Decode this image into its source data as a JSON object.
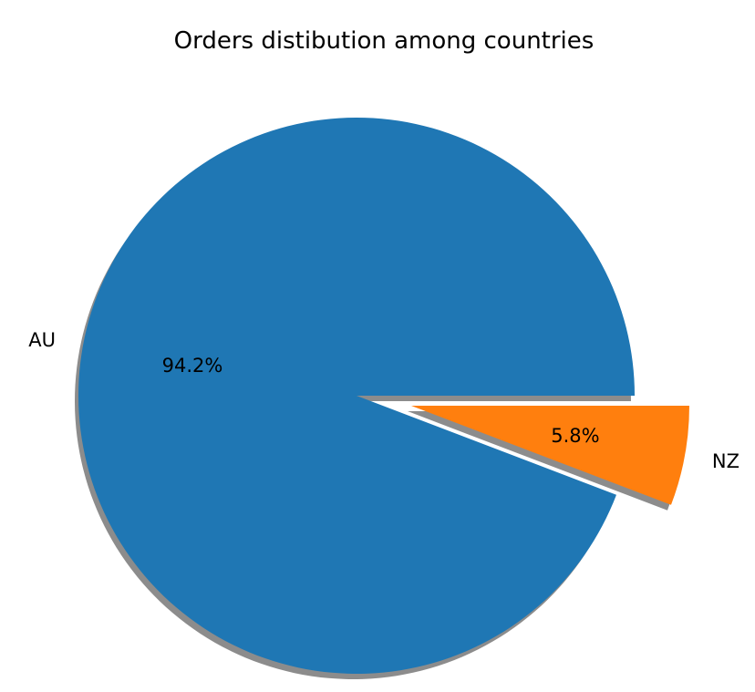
{
  "chart_data": {
    "type": "pie",
    "title": "Orders distibution among countries",
    "slices": [
      {
        "label": "AU",
        "value": 94.2,
        "pct_text": "94.2%",
        "color": "#1f77b4",
        "explode": 0.0
      },
      {
        "label": "NZ",
        "value": 5.8,
        "pct_text": "5.8%",
        "color": "#ff7f0e",
        "explode": 0.2
      }
    ],
    "shadow": true,
    "start_angle_deg": 0,
    "direction": "counterclockwise",
    "legend": "none"
  }
}
